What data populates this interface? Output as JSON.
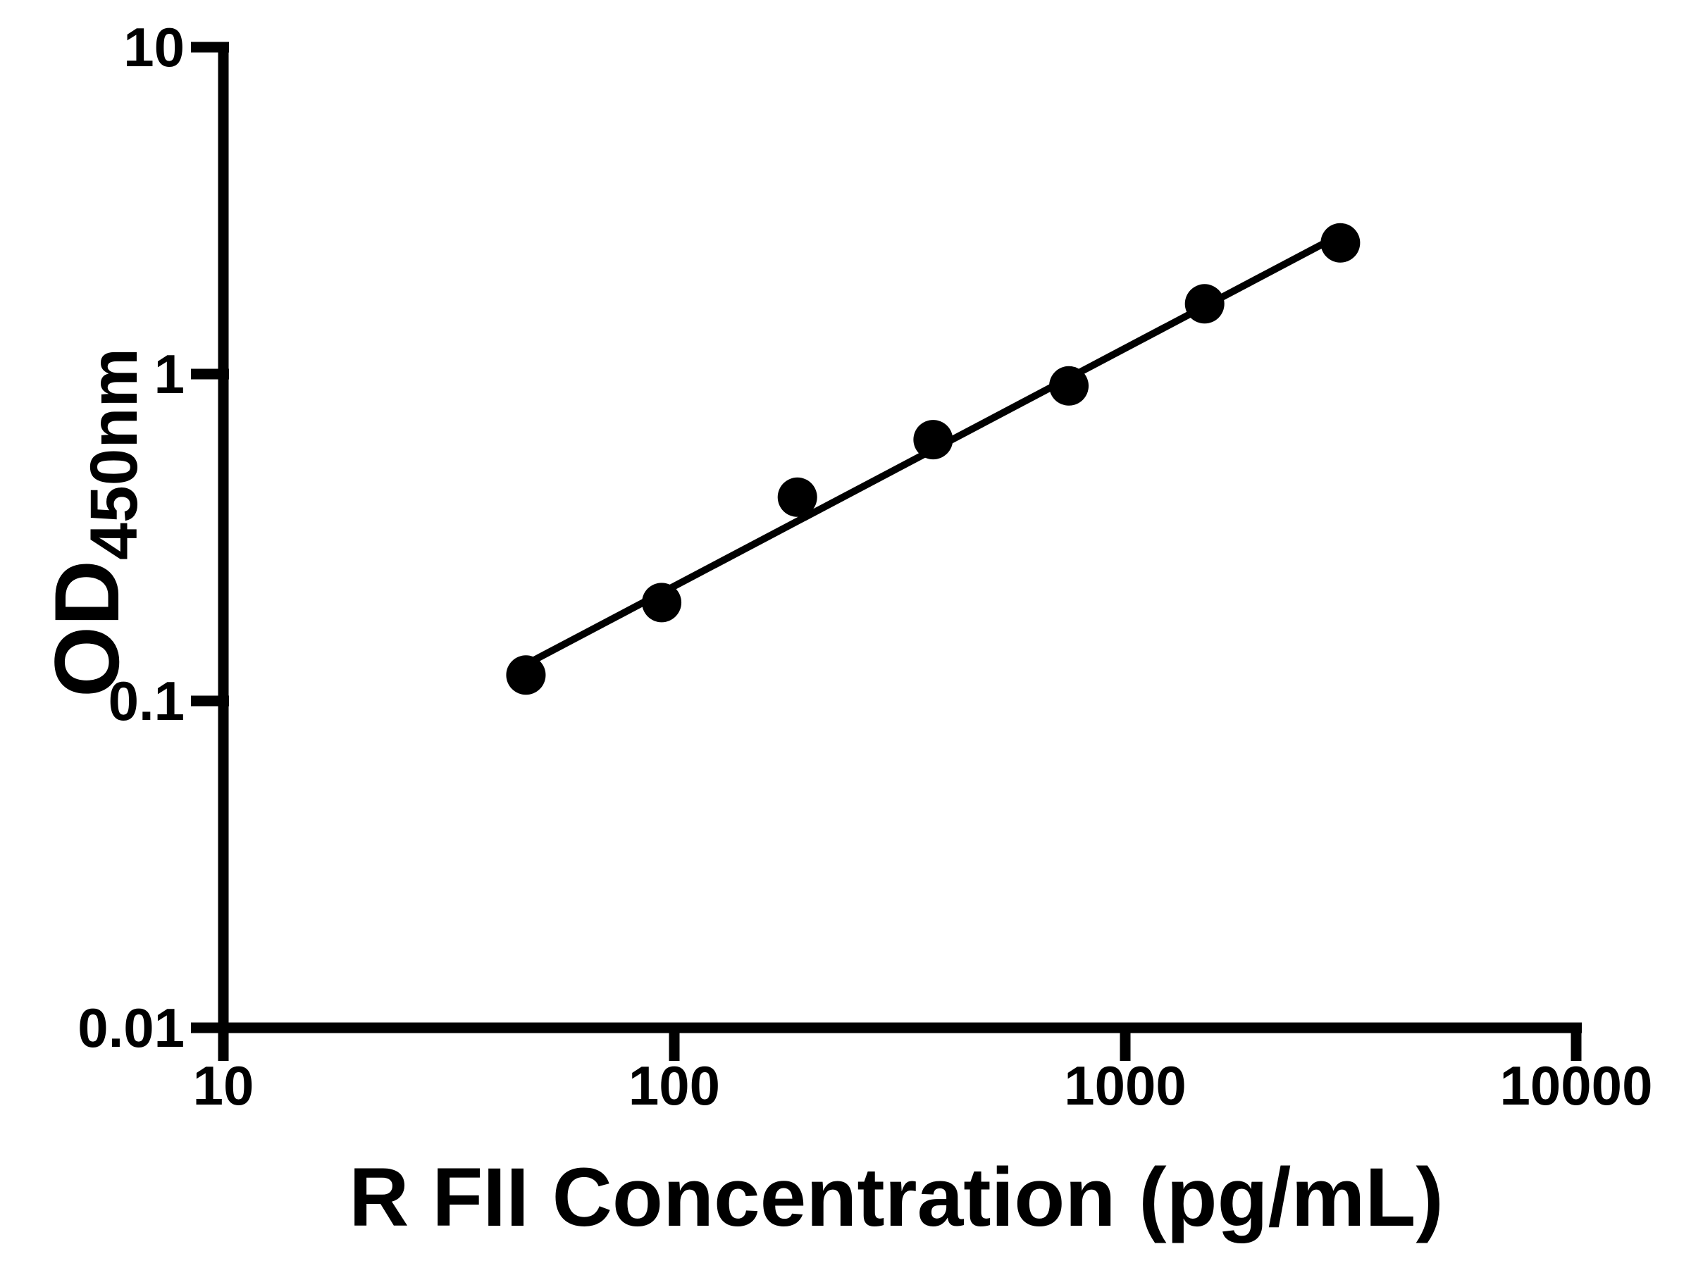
{
  "page": {
    "background_color": "#ffffff",
    "foreground_color": "#000000"
  },
  "chart_data": {
    "type": "scatter",
    "xlabel": "R FII Concentration (pg/mL)",
    "ylabel_main": "OD",
    "ylabel_sub": "450nm",
    "x_scale": "log10",
    "y_scale": "log10",
    "xlim": [
      10,
      10000
    ],
    "ylim": [
      0.01,
      10
    ],
    "grid": false,
    "legend": false,
    "x_ticks": [
      {
        "value": 10,
        "label": "10"
      },
      {
        "value": 100,
        "label": "100"
      },
      {
        "value": 1000,
        "label": "1000"
      },
      {
        "value": 10000,
        "label": "10000"
      }
    ],
    "y_ticks": [
      {
        "value": 10,
        "label": "10"
      },
      {
        "value": 1,
        "label": "1"
      },
      {
        "value": 0.1,
        "label": "0.1"
      },
      {
        "value": 0.01,
        "label": "0.01"
      }
    ],
    "series": [
      {
        "marker": "circle",
        "color": "#000000",
        "points": [
          {
            "x": 46.88,
            "y": 0.12
          },
          {
            "x": 93.75,
            "y": 0.2
          },
          {
            "x": 187.5,
            "y": 0.42
          },
          {
            "x": 375,
            "y": 0.63
          },
          {
            "x": 750,
            "y": 0.92
          },
          {
            "x": 1500,
            "y": 1.64
          },
          {
            "x": 3000,
            "y": 2.52
          }
        ]
      }
    ],
    "trendline": {
      "type": "linear-fit-loglog",
      "color": "#000000"
    }
  }
}
